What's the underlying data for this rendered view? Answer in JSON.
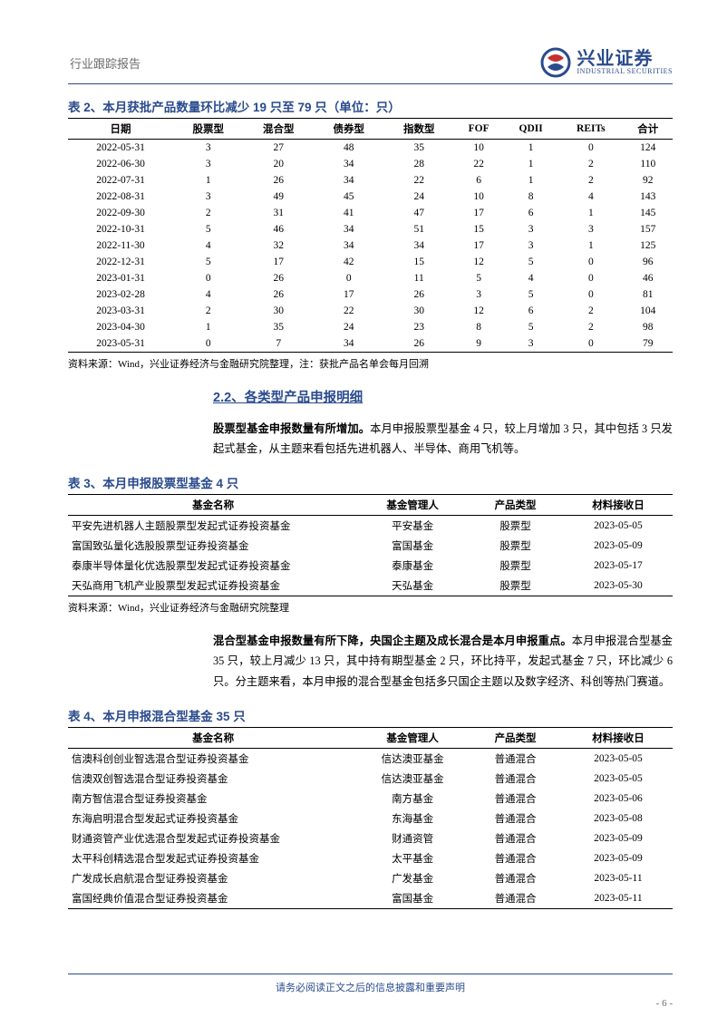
{
  "header": {
    "leftText": "行业跟踪报告",
    "logoCn": "兴业证券",
    "logoEn": "INDUSTRIAL SECURITIES"
  },
  "table2": {
    "title": "表 2、本月获批产品数量环比减少 19 只至 79 只（单位：只）",
    "headers": [
      "日期",
      "股票型",
      "混合型",
      "债券型",
      "指数型",
      "FOF",
      "QDII",
      "REITs",
      "合计"
    ],
    "rows": [
      [
        "2022-05-31",
        "3",
        "27",
        "48",
        "35",
        "10",
        "1",
        "0",
        "124"
      ],
      [
        "2022-06-30",
        "3",
        "20",
        "34",
        "28",
        "22",
        "1",
        "2",
        "110"
      ],
      [
        "2022-07-31",
        "1",
        "26",
        "34",
        "22",
        "6",
        "1",
        "2",
        "92"
      ],
      [
        "2022-08-31",
        "3",
        "49",
        "45",
        "24",
        "10",
        "8",
        "4",
        "143"
      ],
      [
        "2022-09-30",
        "2",
        "31",
        "41",
        "47",
        "17",
        "6",
        "1",
        "145"
      ],
      [
        "2022-10-31",
        "5",
        "46",
        "34",
        "51",
        "15",
        "3",
        "3",
        "157"
      ],
      [
        "2022-11-30",
        "4",
        "32",
        "34",
        "34",
        "17",
        "3",
        "1",
        "125"
      ],
      [
        "2022-12-31",
        "5",
        "17",
        "42",
        "15",
        "12",
        "5",
        "0",
        "96"
      ],
      [
        "2023-01-31",
        "0",
        "26",
        "0",
        "11",
        "5",
        "4",
        "0",
        "46"
      ],
      [
        "2023-02-28",
        "4",
        "26",
        "17",
        "26",
        "3",
        "5",
        "0",
        "81"
      ],
      [
        "2023-03-31",
        "2",
        "30",
        "22",
        "30",
        "12",
        "6",
        "2",
        "104"
      ],
      [
        "2023-04-30",
        "1",
        "35",
        "24",
        "23",
        "8",
        "5",
        "2",
        "98"
      ],
      [
        "2023-05-31",
        "0",
        "7",
        "34",
        "26",
        "9",
        "3",
        "0",
        "79"
      ]
    ],
    "source": "资料来源：Wind，兴业证券经济与金融研究院整理，注：获批产品名单会每月回溯"
  },
  "section22": {
    "heading": "2.2、各类型产品申报明细",
    "para1Lead": "股票型基金申报数量有所增加。",
    "para1Rest": "本月申报股票型基金 4 只，较上月增加 3 只，其中包括 3 只发起式基金，从主题来看包括先进机器人、半导体、商用飞机等。"
  },
  "table3": {
    "title": "表 3、本月申报股票型基金 4 只",
    "headers": [
      "基金名称",
      "基金管理人",
      "产品类型",
      "材料接收日"
    ],
    "rows": [
      [
        "平安先进机器人主题股票型发起式证券投资基金",
        "平安基金",
        "股票型",
        "2023-05-05"
      ],
      [
        "富国致弘量化选股股票型证券投资基金",
        "富国基金",
        "股票型",
        "2023-05-09"
      ],
      [
        "泰康半导体量化优选股票型发起式证券投资基金",
        "泰康基金",
        "股票型",
        "2023-05-17"
      ],
      [
        "天弘商用飞机产业股票型发起式证券投资基金",
        "天弘基金",
        "股票型",
        "2023-05-30"
      ]
    ],
    "source": "资料来源：Wind，兴业证券经济与金融研究院整理"
  },
  "para2": {
    "lead": "混合型基金申报数量有所下降，央国企主题及成长混合是本月申报重点。",
    "rest": "本月申报混合型基金 35 只，较上月减少 13 只，其中持有期型基金 2 只，环比持平，发起式基金 7 只，环比减少 6 只。分主题来看，本月申报的混合型基金包括多只国企主题以及数字经济、科创等热门赛道。"
  },
  "table4": {
    "title": "表 4、本月申报混合型基金 35 只",
    "headers": [
      "基金名称",
      "基金管理人",
      "产品类型",
      "材料接收日"
    ],
    "rows": [
      [
        "信澳科创创业智选混合型证券投资基金",
        "信达澳亚基金",
        "普通混合",
        "2023-05-05"
      ],
      [
        "信澳双创智选混合型证券投资基金",
        "信达澳亚基金",
        "普通混合",
        "2023-05-05"
      ],
      [
        "南方智信混合型证券投资基金",
        "南方基金",
        "普通混合",
        "2023-05-06"
      ],
      [
        "东海启明混合型发起式证券投资基金",
        "东海基金",
        "普通混合",
        "2023-05-08"
      ],
      [
        "财通资管产业优选混合型发起式证券投资基金",
        "财通资管",
        "普通混合",
        "2023-05-09"
      ],
      [
        "太平科创精选混合型发起式证券投资基金",
        "太平基金",
        "普通混合",
        "2023-05-09"
      ],
      [
        "广发成长启航混合型证券投资基金",
        "广发基金",
        "普通混合",
        "2023-05-11"
      ],
      [
        "富国经典价值混合型证券投资基金",
        "富国基金",
        "普通混合",
        "2023-05-11"
      ]
    ]
  },
  "footer": {
    "text": "请务必阅读正文之后的信息披露和重要声明",
    "page": "- 6 -"
  },
  "style": {
    "accentColor": "#2a4b8d",
    "docWidth": 802,
    "docHeight": 1133
  }
}
